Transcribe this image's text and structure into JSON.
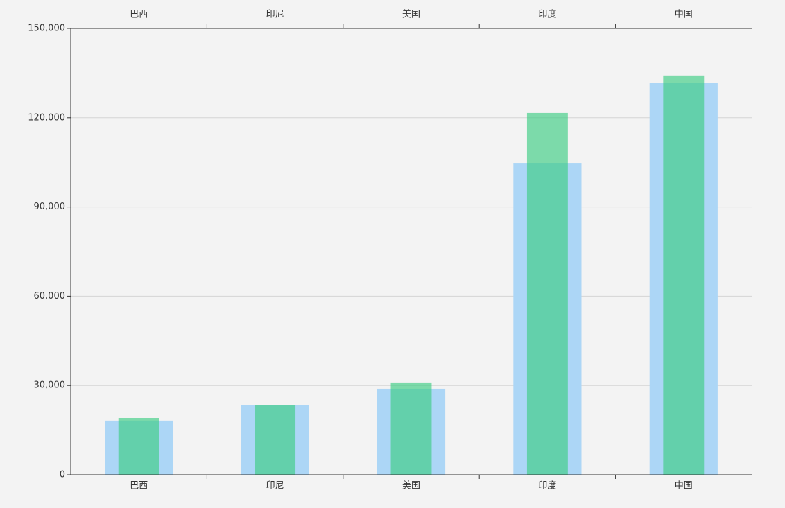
{
  "chart_data": {
    "type": "bar",
    "categories": [
      "巴西",
      "印尼",
      "美国",
      "印度",
      "中国"
    ],
    "series": [
      {
        "color": "#acd6f6",
        "values": [
          18200,
          23300,
          28900,
          104800,
          131600
        ]
      },
      {
        "color": "#3ccd82",
        "values": [
          19100,
          23300,
          31000,
          121600,
          134200
        ]
      }
    ],
    "ylim": [
      0,
      150000
    ],
    "yticks": [
      0,
      {
        "value": 30000,
        "label": "30,000"
      },
      {
        "value": 60000,
        "label": "60,000"
      },
      {
        "value": 90000,
        "label": "90,000"
      },
      {
        "value": 120000,
        "label": "120,000"
      },
      {
        "value": 150000,
        "label": "150,000"
      }
    ],
    "grid": true
  }
}
